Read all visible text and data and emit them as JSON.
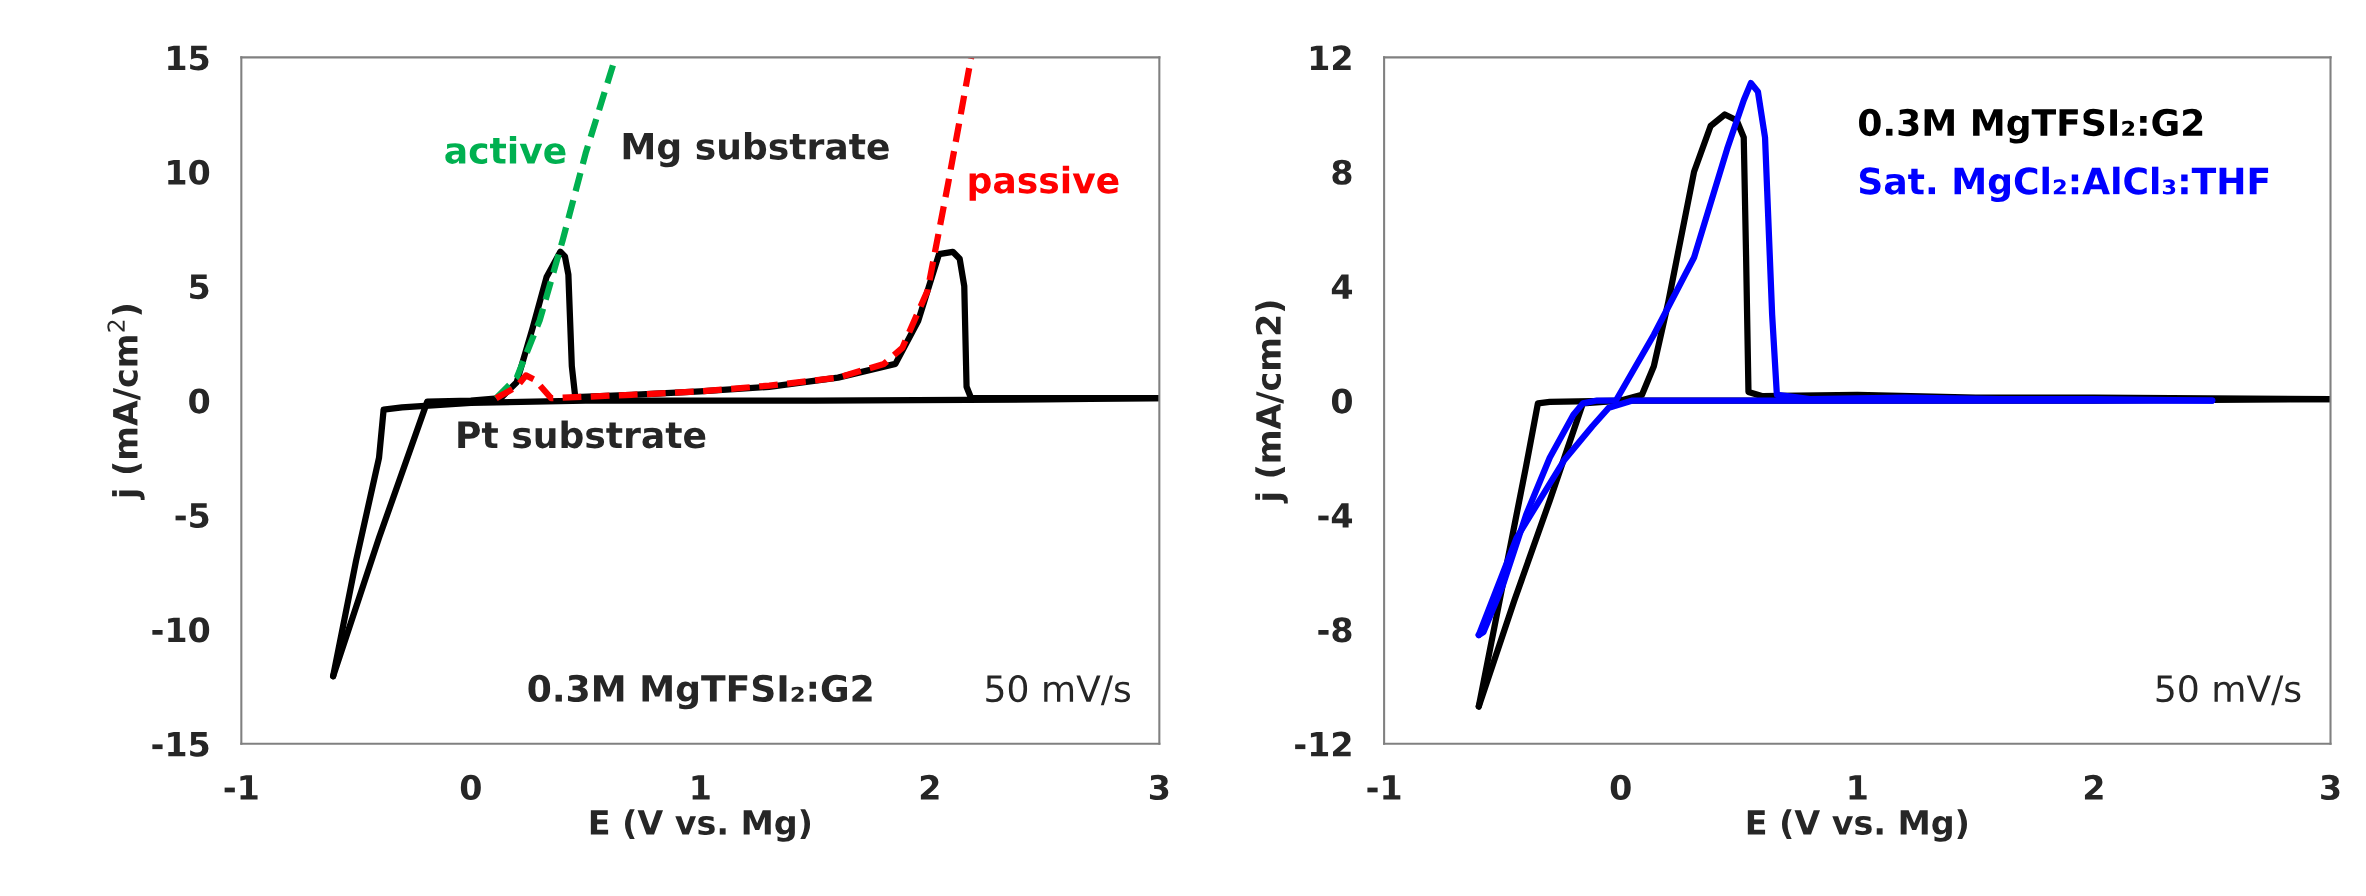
{
  "chart_data": [
    {
      "type": "line",
      "xlabel": "E (V vs. Mg)",
      "ylabel": "j (mA/cm$^{2}$)",
      "xlim": [
        -1,
        3
      ],
      "ylim": [
        -15,
        15
      ],
      "xticks": [
        -1,
        0,
        1,
        2,
        3
      ],
      "yticks": [
        -15,
        -10,
        -5,
        0,
        5,
        10,
        15
      ],
      "grid": false,
      "series": [
        {
          "color": "#000000",
          "line_style": "solid",
          "x": [
            -0.6,
            -0.4,
            -0.19,
            0.0,
            0.13,
            0.2,
            0.27,
            0.33,
            0.39,
            0.41,
            0.425,
            0.44,
            0.455,
            0.7,
            1.0,
            1.3,
            1.6,
            1.85,
            1.95,
            2.04,
            2.1,
            2.13,
            2.15,
            2.16,
            2.18,
            2.5,
            3.0
          ],
          "values": [
            -12.05,
            -6.0,
            -0.05,
            0.0,
            0.1,
            0.8,
            3.2,
            5.4,
            6.5,
            6.3,
            5.5,
            1.5,
            0.15,
            0.25,
            0.4,
            0.6,
            1.0,
            1.6,
            3.5,
            6.4,
            6.5,
            6.2,
            5.0,
            0.6,
            0.1,
            0.1,
            0.1
          ]
        },
        {
          "color": "#000000",
          "line_style": "solid",
          "x": [
            3.0,
            2.5,
            1.5,
            0.5,
            0.0,
            -0.3,
            -0.38,
            -0.4,
            -0.5,
            -0.6
          ],
          "values": [
            0.1,
            0.05,
            0.0,
            0.0,
            -0.1,
            -0.3,
            -0.4,
            -2.5,
            -7.0,
            -12.05
          ]
        },
        {
          "name": "active",
          "color": "#00b050",
          "line_style": "dashed",
          "x": [
            0.11,
            0.2,
            0.3,
            0.4,
            0.5,
            0.63
          ],
          "values": [
            0.1,
            1.0,
            3.5,
            7.0,
            10.8,
            15.0
          ]
        },
        {
          "name": "passive",
          "color": "#ff0000",
          "line_style": "dashed",
          "x": [
            0.11,
            0.2,
            0.24,
            0.28,
            0.35,
            0.7,
            1.0,
            1.3,
            1.6,
            1.8,
            1.88,
            1.99,
            2.08,
            2.18
          ],
          "values": [
            0.1,
            0.6,
            1.1,
            0.9,
            0.1,
            0.25,
            0.4,
            0.65,
            1.0,
            1.6,
            2.3,
            4.8,
            9.5,
            15.0
          ]
        }
      ],
      "annotations": [
        "Mg substrate",
        "Pt substrate",
        "0.3M MgTFSI₂:G2",
        "50 mV/s"
      ]
    },
    {
      "type": "line",
      "xlabel": "E (V vs. Mg)",
      "ylabel": "j (mA/cm2)",
      "xlim": [
        -1,
        3
      ],
      "ylim": [
        -12,
        12
      ],
      "xticks": [
        -1,
        0,
        1,
        2,
        3
      ],
      "yticks": [
        -12,
        -8,
        -4,
        0,
        4,
        8,
        12
      ],
      "grid": false,
      "series": [
        {
          "name": "0.3M MgTFSI₂:G2",
          "color": "#000000",
          "line_style": "solid",
          "x": [
            -0.6,
            -0.45,
            -0.3,
            -0.16,
            0.0,
            0.09,
            0.14,
            0.2,
            0.31,
            0.38,
            0.44,
            0.49,
            0.52,
            0.53,
            0.54,
            0.6,
            1.0,
            1.5,
            2.0,
            3.0
          ],
          "values": [
            -10.7,
            -7.0,
            -3.5,
            -0.1,
            0.0,
            0.2,
            1.2,
            3.4,
            8.0,
            9.6,
            10.0,
            9.8,
            9.2,
            5.0,
            0.3,
            0.15,
            0.2,
            0.1,
            0.1,
            0.05
          ]
        },
        {
          "color": "#000000",
          "line_style": "solid",
          "x": [
            3.0,
            2.0,
            1.0,
            0.0,
            -0.3,
            -0.35,
            -0.4,
            -0.5,
            -0.6
          ],
          "values": [
            0.05,
            0.0,
            0.0,
            0.0,
            -0.05,
            -0.1,
            -2.3,
            -6.5,
            -10.7
          ]
        },
        {
          "name": "Sat. MgCl₂:AlCl₃:THF",
          "color": "#0000ff",
          "line_style": "solid",
          "x": [
            -0.6,
            -0.58,
            -0.5,
            -0.4,
            -0.3,
            -0.2,
            -0.16,
            -0.1,
            -0.02,
            0.14,
            0.31,
            0.45,
            0.52,
            0.55,
            0.58,
            0.61,
            0.64,
            0.66,
            0.8,
            1.2,
            1.6,
            2.0,
            2.5
          ],
          "values": [
            -8.2,
            -8.1,
            -6.5,
            -4.0,
            -2.0,
            -0.5,
            -0.1,
            0.0,
            0.0,
            2.3,
            5.0,
            8.8,
            10.5,
            11.1,
            10.8,
            9.2,
            3.0,
            0.2,
            0.05,
            0.1,
            0.05,
            0.05,
            0.0
          ]
        },
        {
          "color": "#0000ff",
          "line_style": "solid",
          "x": [
            2.5,
            2.0,
            1.0,
            0.3,
            0.05,
            -0.05,
            -0.12,
            -0.24,
            -0.44,
            -0.6
          ],
          "values": [
            0.0,
            0.0,
            0.0,
            0.0,
            0.0,
            -0.25,
            -0.9,
            -2.1,
            -4.8,
            -8.2
          ]
        }
      ],
      "annotations": [
        "50 mV/s"
      ]
    }
  ]
}
